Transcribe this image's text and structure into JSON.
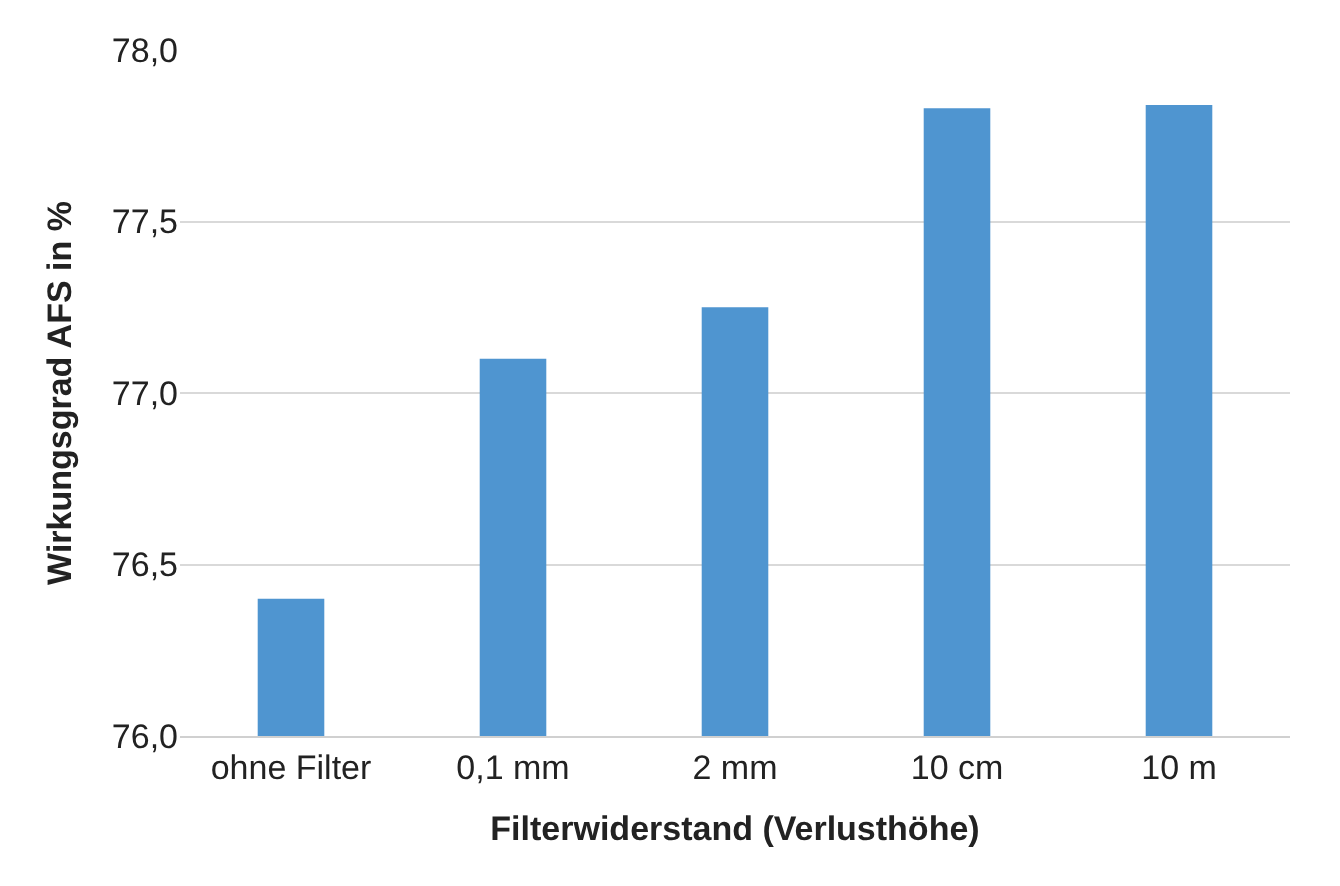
{
  "chart_data": {
    "type": "bar",
    "xlabel": "Filterwiderstand (Verlusthöhe)",
    "ylabel": "Wirkungsgrad AFS in %",
    "categories": [
      "ohne Filter",
      "0,1 mm",
      "2 mm",
      "10 cm",
      "10 m"
    ],
    "values": [
      76.4,
      77.1,
      77.25,
      77.83,
      77.84
    ],
    "color": "#4f95d0",
    "ylim": [
      76.0,
      78.0
    ],
    "yticks": [
      {
        "value": 76.0,
        "label": "76,0"
      },
      {
        "value": 76.5,
        "label": "76,5"
      },
      {
        "value": 77.0,
        "label": "77,0"
      },
      {
        "value": 77.5,
        "label": "77,5"
      },
      {
        "value": 78.0,
        "label": "78,0"
      }
    ],
    "grid": "y"
  }
}
